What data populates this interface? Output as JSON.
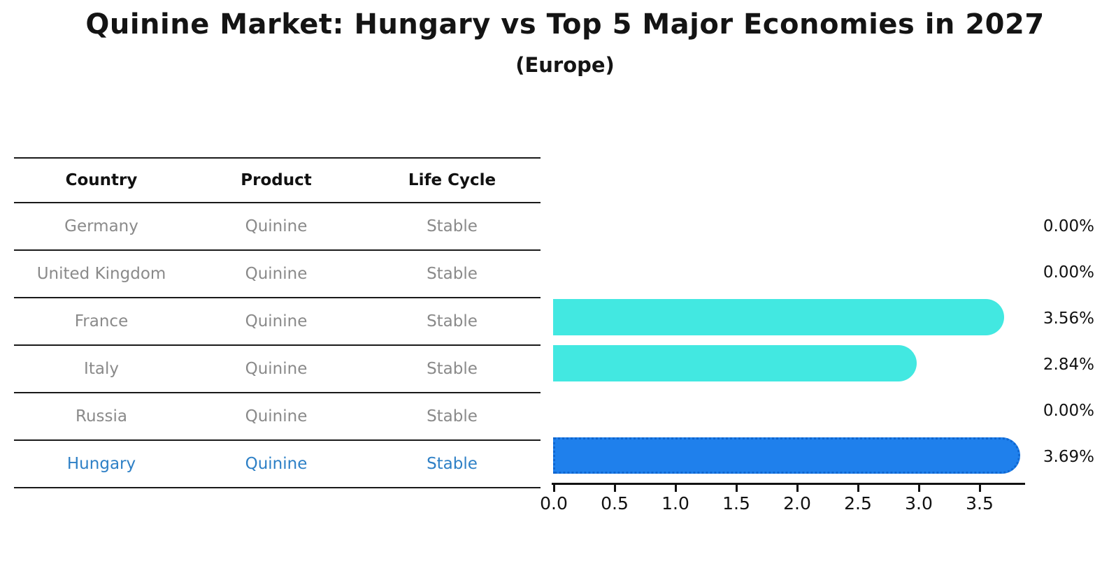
{
  "title": "Quinine Market: Hungary vs Top 5 Major Economies in 2027",
  "subtitle": "(Europe)",
  "table": {
    "columns": [
      "Country",
      "Product",
      "Life Cycle"
    ],
    "rows": [
      {
        "country": "Germany",
        "product": "Quinine",
        "life_cycle": "Stable"
      },
      {
        "country": "United Kingdom",
        "product": "Quinine",
        "life_cycle": "Stable"
      },
      {
        "country": "France",
        "product": "Quinine",
        "life_cycle": "Stable"
      },
      {
        "country": "Italy",
        "product": "Quinine",
        "life_cycle": "Stable"
      },
      {
        "country": "Russia",
        "product": "Quinine",
        "life_cycle": "Stable"
      },
      {
        "country": "Hungary",
        "product": "Quinine",
        "life_cycle": "Stable"
      }
    ]
  },
  "chart_data": {
    "type": "bar",
    "orientation": "horizontal",
    "title": "Quinine Market: Hungary vs Top 5 Major Economies in 2027",
    "subtitle": "(Europe)",
    "categories": [
      "Germany",
      "United Kingdom",
      "France",
      "Italy",
      "Russia",
      "Hungary"
    ],
    "values": [
      0.0,
      0.0,
      3.56,
      2.84,
      0.0,
      3.69
    ],
    "value_labels": [
      "0.00%",
      "0.00%",
      "3.56%",
      "2.84%",
      "0.00%",
      "3.69%"
    ],
    "unit": "percent",
    "xlim": [
      0,
      3.9
    ],
    "x_ticks": [
      0.0,
      0.5,
      1.0,
      1.5,
      2.0,
      2.5,
      3.0,
      3.5
    ],
    "x_tick_labels": [
      "0.0",
      "0.5",
      "1.0",
      "1.5",
      "2.0",
      "2.5",
      "3.0",
      "3.5"
    ],
    "grid": false,
    "legend": false,
    "highlight_index": 5,
    "colors": {
      "bar_default": "#42e8e1",
      "bar_highlight": "#1f80ec",
      "bar_highlight_border": "#0f66d0",
      "highlight_text": "#2e80c6",
      "table_text": "#8a8a8a",
      "header_text": "#111111",
      "axis_text": "#111111"
    }
  }
}
